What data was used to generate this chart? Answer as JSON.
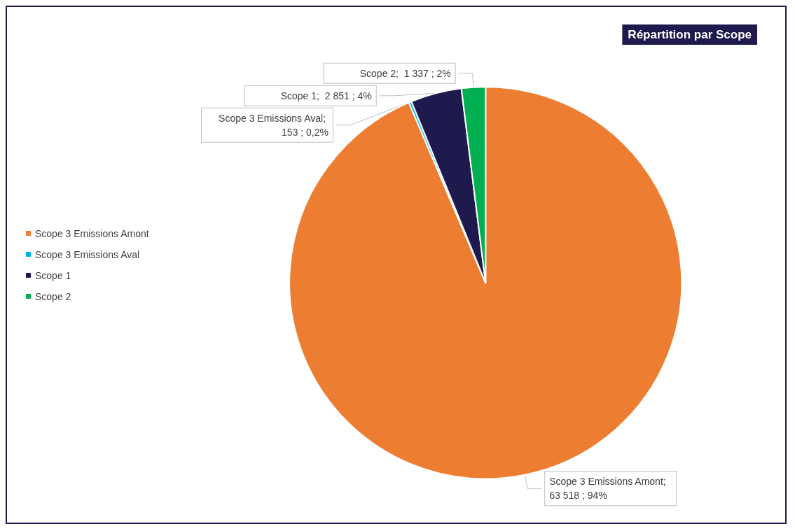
{
  "chart_data": {
    "type": "pie",
    "title": "Répartition par Scope",
    "categories": [
      "Scope 3 Emissions Amont",
      "Scope 3 Emissions Aval",
      "Scope 1",
      "Scope 2"
    ],
    "values": [
      63518,
      153,
      2851,
      1337
    ],
    "colors": [
      "#ed7d31",
      "#00b0f0",
      "#1f1a4d",
      "#00b050"
    ],
    "value_labels": [
      "Scope 3 Emissions Amont; 63 518 ; 94%",
      "Scope 3 Emissions Aval; 153 ; 0,2%",
      "Scope 1;  2 851 ; 4%",
      "Scope 2;  1 337 ; 2%"
    ],
    "legend": "left"
  }
}
